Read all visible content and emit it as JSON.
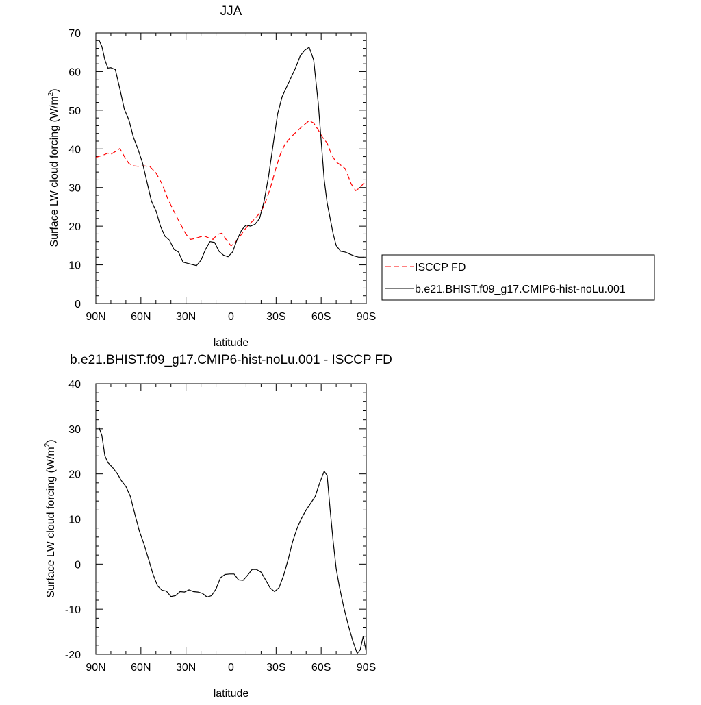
{
  "chart_data": [
    {
      "type": "line",
      "title": "JJA",
      "xlabel": "latitude",
      "ylabel": "Surface LW cloud forcing (W/m",
      "ylabel_sup": "2",
      "ylabel_end": ")",
      "xlim": [
        -90,
        90
      ],
      "ylim": [
        0,
        70
      ],
      "xticks": [
        -90,
        -60,
        -30,
        0,
        30,
        60,
        90
      ],
      "xtick_labels": [
        "90N",
        "60N",
        "30N",
        "0",
        "30S",
        "60S",
        "90S"
      ],
      "yticks": [
        0,
        10,
        20,
        30,
        40,
        50,
        60,
        70
      ],
      "ytick_labels": [
        "0",
        "10",
        "20",
        "30",
        "40",
        "50",
        "60",
        "70"
      ],
      "legend_placement": "outside-right",
      "series": [
        {
          "name": "ISCCP FD",
          "color": "#ff0000",
          "style": "dashed",
          "x": [
            -90,
            -85,
            -82,
            -80,
            -77,
            -74,
            -71,
            -68,
            -65,
            -62,
            -58,
            -54,
            -50,
            -46,
            -42,
            -38,
            -34,
            -30,
            -27,
            -24,
            -21,
            -18,
            -15,
            -12,
            -9,
            -6,
            -3,
            0,
            3,
            6,
            9,
            12,
            15,
            18,
            21,
            24,
            27,
            30,
            33,
            36,
            40,
            44,
            48,
            52,
            55,
            58,
            61,
            64,
            67,
            70,
            73,
            76,
            80,
            83,
            86,
            88,
            90
          ],
          "y": [
            37.8,
            38.4,
            38.9,
            38.6,
            39.3,
            40.1,
            38.0,
            36.2,
            35.6,
            35.5,
            35.6,
            35.4,
            33.8,
            31.0,
            27.0,
            23.8,
            20.8,
            17.9,
            16.6,
            16.8,
            17.2,
            17.5,
            17.0,
            16.6,
            17.9,
            18.2,
            16.4,
            14.9,
            15.9,
            17.4,
            19.1,
            20.4,
            21.6,
            22.9,
            24.6,
            27.3,
            31.0,
            35.2,
            38.8,
            41.3,
            43.1,
            44.6,
            46.0,
            47.3,
            46.7,
            44.9,
            42.9,
            41.5,
            38.4,
            36.6,
            35.8,
            34.9,
            30.9,
            29.2,
            30.0,
            31.0,
            31.0
          ]
        },
        {
          "name": "b.e21.BHIST.f09_g17.CMIP6-hist-noLu.001",
          "color": "#000000",
          "style": "solid",
          "x": [
            -88,
            -86,
            -84,
            -82,
            -80,
            -77,
            -74,
            -71,
            -68,
            -65,
            -62,
            -59,
            -56,
            -53,
            -50,
            -47,
            -44,
            -41,
            -38,
            -35,
            -32,
            -29,
            -26,
            -23,
            -20,
            -17,
            -14,
            -11,
            -8,
            -5,
            -2,
            1,
            4,
            7,
            10,
            13,
            16,
            19,
            22,
            25,
            28,
            31,
            34,
            37,
            40,
            43,
            46,
            49,
            52,
            55,
            58,
            60,
            62,
            64,
            66,
            68,
            70,
            73,
            76,
            79,
            82,
            85,
            88
          ],
          "y": [
            68.2,
            66.5,
            63.0,
            60.9,
            61.0,
            60.5,
            55.5,
            50.2,
            47.5,
            43.0,
            40.0,
            36.5,
            31.5,
            26.5,
            24.0,
            20.0,
            17.4,
            16.4,
            14.0,
            13.3,
            10.7,
            10.4,
            10.1,
            9.8,
            11.2,
            14.0,
            16.0,
            15.8,
            13.5,
            12.5,
            12.1,
            13.3,
            16.5,
            19.0,
            20.3,
            20.0,
            20.5,
            22.0,
            26.5,
            33.0,
            41.0,
            49.0,
            53.5,
            56.0,
            58.5,
            61.0,
            64.0,
            65.5,
            66.3,
            63.0,
            52.0,
            42.0,
            32.0,
            26.0,
            22.0,
            18.0,
            15.0,
            13.5,
            13.3,
            12.8,
            12.3,
            12.0,
            12.0
          ]
        }
      ]
    },
    {
      "type": "line",
      "title": "b.e21.BHIST.f09_g17.CMIP6-hist-noLu.001 - ISCCP FD",
      "xlabel": "latitude",
      "ylabel": "Surface LW cloud forcing (W/m",
      "ylabel_sup": "2",
      "ylabel_end": ")",
      "xlim": [
        -90,
        90
      ],
      "ylim": [
        -20,
        40
      ],
      "xticks": [
        -90,
        -60,
        -30,
        0,
        30,
        60,
        90
      ],
      "xtick_labels": [
        "90N",
        "60N",
        "30N",
        "0",
        "30S",
        "60S",
        "90S"
      ],
      "yticks": [
        -20,
        -10,
        0,
        10,
        20,
        30,
        40
      ],
      "ytick_labels": [
        "-20",
        "-10",
        "0",
        "10",
        "20",
        "30",
        "40"
      ],
      "series": [
        {
          "color": "#000000",
          "style": "solid",
          "x": [
            -88,
            -86,
            -84,
            -82,
            -79,
            -76,
            -73,
            -70,
            -67,
            -64,
            -61,
            -58,
            -55,
            -52,
            -49,
            -46,
            -43,
            -40,
            -37,
            -34,
            -31,
            -28,
            -25,
            -22,
            -19,
            -16,
            -13,
            -10,
            -7,
            -4,
            -1,
            2,
            5,
            8,
            11,
            14,
            17,
            20,
            23,
            26,
            29,
            32,
            35,
            38,
            41,
            44,
            47,
            50,
            53,
            56,
            59,
            62,
            64,
            66,
            68,
            70,
            72,
            75,
            78,
            81,
            84,
            86,
            88,
            90
          ],
          "y": [
            30.4,
            28.5,
            24.0,
            22.5,
            21.5,
            20.2,
            18.5,
            17.2,
            15.0,
            11.0,
            7.3,
            4.5,
            1.2,
            -2.2,
            -4.8,
            -5.8,
            -6.0,
            -7.2,
            -7.0,
            -6.1,
            -6.2,
            -5.7,
            -6.1,
            -6.2,
            -6.5,
            -7.3,
            -7.0,
            -5.5,
            -3.0,
            -2.3,
            -2.2,
            -2.2,
            -3.5,
            -3.6,
            -2.5,
            -1.2,
            -1.2,
            -1.8,
            -3.5,
            -5.3,
            -6.1,
            -5.2,
            -2.5,
            1.0,
            5.0,
            8.0,
            10.2,
            12.0,
            13.5,
            15.0,
            18.0,
            20.6,
            19.6,
            12.0,
            5.0,
            -1.0,
            -4.8,
            -9.5,
            -13.5,
            -17.0,
            -19.8,
            -19.0,
            -16.0,
            -19.5
          ]
        }
      ]
    }
  ]
}
